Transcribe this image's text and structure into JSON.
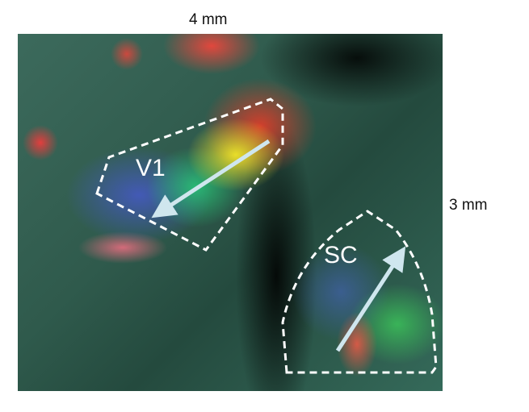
{
  "scale": {
    "top": "4 mm",
    "right": "3 mm"
  },
  "regions": {
    "v1": "V1",
    "sc": "SC"
  },
  "colors": {
    "outline": "#ffffff",
    "arrow": "#cfe6ee"
  }
}
